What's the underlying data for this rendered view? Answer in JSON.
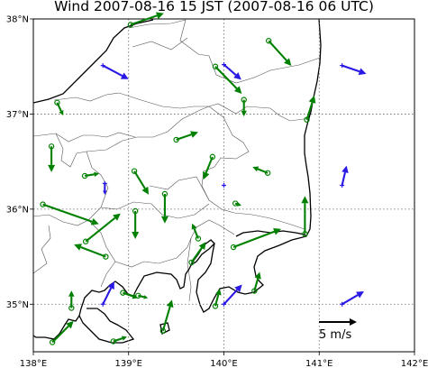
{
  "title": "Wind  2007-08-16 15 JST (2007-08-16 06 UTC)",
  "chart_data": {
    "type": "vector-map",
    "xlim": [
      138.0,
      142.0
    ],
    "ylim": [
      34.5,
      38.0
    ],
    "x_ticks": [
      {
        "value": 138.0,
        "label": "138°E"
      },
      {
        "value": 139.0,
        "label": "139°E"
      },
      {
        "value": 140.0,
        "label": "140°E"
      },
      {
        "value": 141.0,
        "label": "141°E"
      },
      {
        "value": 142.0,
        "label": "142°E"
      }
    ],
    "y_ticks": [
      {
        "value": 35.0,
        "label": "35°N"
      },
      {
        "value": 36.0,
        "label": "36°N"
      },
      {
        "value": 37.0,
        "label": "37°N"
      },
      {
        "value": 38.0,
        "label": "38°N"
      }
    ],
    "grid": true,
    "scale_arrow": {
      "u": 5,
      "v": 0,
      "label": "5 m/s"
    },
    "colors": {
      "land_station": "#008000",
      "sea_station": "#2a18e6",
      "coast": "#000000",
      "border": "#444444"
    },
    "stations": [
      {
        "lon": 139.02,
        "lat": 37.94,
        "u": 4.4,
        "v": 1.5,
        "type": "land"
      },
      {
        "lon": 140.47,
        "lat": 37.77,
        "u": 3.0,
        "v": -3.3,
        "type": "land"
      },
      {
        "lon": 139.91,
        "lat": 37.5,
        "u": 3.5,
        "v": -3.6,
        "type": "land"
      },
      {
        "lon": 140.21,
        "lat": 37.15,
        "u": 0.0,
        "v": -2.2,
        "type": "land"
      },
      {
        "lon": 138.25,
        "lat": 37.12,
        "u": 0.8,
        "v": -1.7,
        "type": "land"
      },
      {
        "lon": 140.87,
        "lat": 36.94,
        "u": 1.0,
        "v": 3.2,
        "type": "land"
      },
      {
        "lon": 138.19,
        "lat": 36.66,
        "u": 0.0,
        "v": -3.4,
        "type": "land"
      },
      {
        "lon": 139.5,
        "lat": 36.73,
        "u": 2.9,
        "v": 1.0,
        "type": "land"
      },
      {
        "lon": 139.06,
        "lat": 36.4,
        "u": 1.9,
        "v": -3.1,
        "type": "land"
      },
      {
        "lon": 139.88,
        "lat": 36.55,
        "u": -1.2,
        "v": -3.0,
        "type": "land"
      },
      {
        "lon": 140.46,
        "lat": 36.38,
        "u": -2.0,
        "v": 0.8,
        "type": "land"
      },
      {
        "lon": 138.54,
        "lat": 36.35,
        "u": 1.9,
        "v": 0.3,
        "type": "land"
      },
      {
        "lon": 139.38,
        "lat": 36.16,
        "u": 0.0,
        "v": -3.9,
        "type": "land"
      },
      {
        "lon": 140.12,
        "lat": 36.06,
        "u": 0.8,
        "v": -0.3,
        "type": "land"
      },
      {
        "lon": 138.1,
        "lat": 36.05,
        "u": 7.4,
        "v": -2.6,
        "type": "land"
      },
      {
        "lon": 139.07,
        "lat": 35.98,
        "u": 0.0,
        "v": -3.7,
        "type": "land"
      },
      {
        "lon": 140.85,
        "lat": 35.74,
        "u": 0.0,
        "v": 5.0,
        "type": "land"
      },
      {
        "lon": 138.55,
        "lat": 35.66,
        "u": 4.6,
        "v": 3.7,
        "type": "land"
      },
      {
        "lon": 140.1,
        "lat": 35.6,
        "u": 6.3,
        "v": 2.4,
        "type": "land"
      },
      {
        "lon": 138.76,
        "lat": 35.5,
        "u": -4.2,
        "v": 1.6,
        "type": "land"
      },
      {
        "lon": 139.73,
        "lat": 35.69,
        "u": -0.8,
        "v": 2.0,
        "type": "land"
      },
      {
        "lon": 139.66,
        "lat": 35.44,
        "u": 1.9,
        "v": 2.7,
        "type": "land"
      },
      {
        "lon": 139.91,
        "lat": 34.98,
        "u": 0.6,
        "v": 2.3,
        "type": "land"
      },
      {
        "lon": 140.32,
        "lat": 35.14,
        "u": 0.7,
        "v": 2.5,
        "type": "land"
      },
      {
        "lon": 138.4,
        "lat": 34.96,
        "u": 0.0,
        "v": 2.3,
        "type": "land"
      },
      {
        "lon": 138.94,
        "lat": 35.12,
        "u": 2.0,
        "v": -0.7,
        "type": "land"
      },
      {
        "lon": 139.1,
        "lat": 35.09,
        "u": 1.3,
        "v": -0.3,
        "type": "land"
      },
      {
        "lon": 139.36,
        "lat": 34.72,
        "u": 1.2,
        "v": 4.1,
        "type": "land"
      },
      {
        "lon": 138.2,
        "lat": 34.6,
        "u": 2.8,
        "v": 2.8,
        "type": "land"
      },
      {
        "lon": 138.84,
        "lat": 34.61,
        "u": 1.8,
        "v": 0.6,
        "type": "land"
      },
      {
        "lon": 138.73,
        "lat": 37.51,
        "u": 3.4,
        "v": -1.8,
        "type": "sea"
      },
      {
        "lon": 140.0,
        "lat": 37.52,
        "u": 2.3,
        "v": -2.0,
        "type": "sea"
      },
      {
        "lon": 141.24,
        "lat": 37.51,
        "u": 3.2,
        "v": -1.1,
        "type": "sea"
      },
      {
        "lon": 138.75,
        "lat": 36.27,
        "u": 0.0,
        "v": -1.5,
        "type": "sea"
      },
      {
        "lon": 140.0,
        "lat": 36.25,
        "u": 0.0,
        "v": 0.0,
        "type": "sea"
      },
      {
        "lon": 141.24,
        "lat": 36.25,
        "u": 0.6,
        "v": 2.6,
        "type": "sea"
      },
      {
        "lon": 138.73,
        "lat": 35.0,
        "u": 1.5,
        "v": 3.0,
        "type": "sea"
      },
      {
        "lon": 140.0,
        "lat": 35.0,
        "u": 2.4,
        "v": 2.6,
        "type": "sea"
      },
      {
        "lon": 141.24,
        "lat": 35.0,
        "u": 2.9,
        "v": 1.7,
        "type": "sea"
      }
    ]
  }
}
